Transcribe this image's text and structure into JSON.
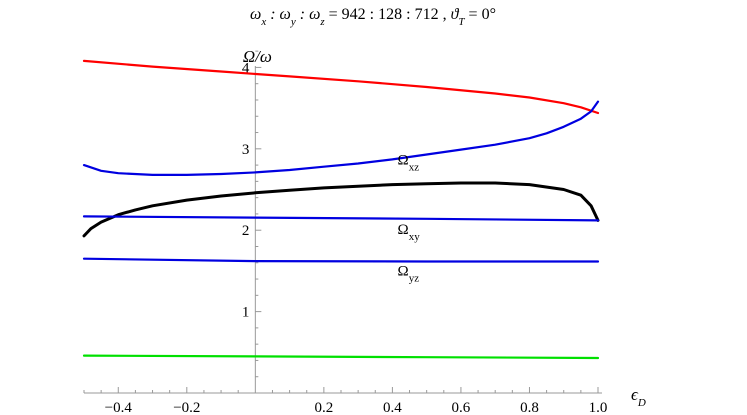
{
  "chart_data": {
    "type": "line",
    "title": "ωx : ωy : ωz = 942 : 128 : 712 , ϑT = 0°",
    "title_parts": {
      "left": "ω",
      "x_sub": "x",
      "sep1": " : ω",
      "y_sub": "y",
      "sep2": " : ω",
      "z_sub": "z",
      "eq": "=",
      "ratio": "942 : 128 : 712",
      "comma": ",",
      "theta": "ϑ",
      "t_sub": "T",
      "theta_val": " = 0°"
    },
    "xlabel": "ϵ",
    "xlabel_sub": "D",
    "ylabel": "Ω/ω",
    "xlim": [
      -0.5,
      1.0
    ],
    "ylim": [
      0,
      4.3
    ],
    "x_ticks": [
      -0.4,
      -0.2,
      0.2,
      0.4,
      0.6,
      0.8,
      1.0
    ],
    "x_tick_labels": [
      "−0.4",
      "−0.2",
      "0.2",
      "0.4",
      "0.6",
      "0.8",
      "1.0"
    ],
    "y_ticks": [
      1,
      2,
      3,
      4
    ],
    "y_tick_labels": [
      "1",
      "2",
      "3",
      "4"
    ],
    "grid": false,
    "annotations": [
      {
        "text": "Ω",
        "sub": "xz",
        "x": 0.45,
        "y": 2.88
      },
      {
        "text": "Ω",
        "sub": "xy",
        "x": 0.45,
        "y": 2.03
      },
      {
        "text": "Ω",
        "sub": "yz",
        "x": 0.45,
        "y": 1.52
      }
    ],
    "series": [
      {
        "color": "#ff0000",
        "x": [
          -0.5,
          -0.3,
          -0.1,
          0.1,
          0.3,
          0.5,
          0.7,
          0.8,
          0.9,
          0.95,
          1.0
        ],
        "y": [
          4.08,
          4.01,
          3.95,
          3.89,
          3.83,
          3.76,
          3.68,
          3.63,
          3.56,
          3.51,
          3.44
        ]
      },
      {
        "color": "#0000e0",
        "x": [
          -0.5,
          -0.45,
          -0.4,
          -0.3,
          -0.2,
          -0.1,
          0.0,
          0.1,
          0.2,
          0.3,
          0.4,
          0.5,
          0.6,
          0.7,
          0.8,
          0.85,
          0.9,
          0.95,
          0.98,
          1.0
        ],
        "y": [
          2.8,
          2.73,
          2.7,
          2.68,
          2.68,
          2.69,
          2.71,
          2.74,
          2.78,
          2.82,
          2.87,
          2.93,
          2.99,
          3.05,
          3.13,
          3.19,
          3.27,
          3.37,
          3.46,
          3.58
        ]
      },
      {
        "color": "#000000",
        "x": [
          -0.5,
          -0.48,
          -0.45,
          -0.4,
          -0.35,
          -0.3,
          -0.2,
          -0.1,
          0.0,
          0.1,
          0.2,
          0.3,
          0.4,
          0.5,
          0.6,
          0.7,
          0.8,
          0.9,
          0.95,
          0.98,
          1.0
        ],
        "y": [
          1.93,
          2.02,
          2.1,
          2.19,
          2.25,
          2.3,
          2.37,
          2.42,
          2.46,
          2.49,
          2.52,
          2.54,
          2.56,
          2.57,
          2.58,
          2.58,
          2.56,
          2.5,
          2.43,
          2.3,
          2.12
        ]
      },
      {
        "color": "#0000e0",
        "x": [
          -0.5,
          0.0,
          0.5,
          1.0
        ],
        "y": [
          2.17,
          2.155,
          2.14,
          2.12
        ]
      },
      {
        "color": "#0000e0",
        "x": [
          -0.5,
          0.0,
          0.5,
          1.0
        ],
        "y": [
          1.65,
          1.62,
          1.615,
          1.615
        ]
      },
      {
        "color": "#00e000",
        "x": [
          -0.5,
          0.0,
          0.5,
          1.0
        ],
        "y": [
          0.46,
          0.45,
          0.44,
          0.43
        ]
      }
    ]
  }
}
